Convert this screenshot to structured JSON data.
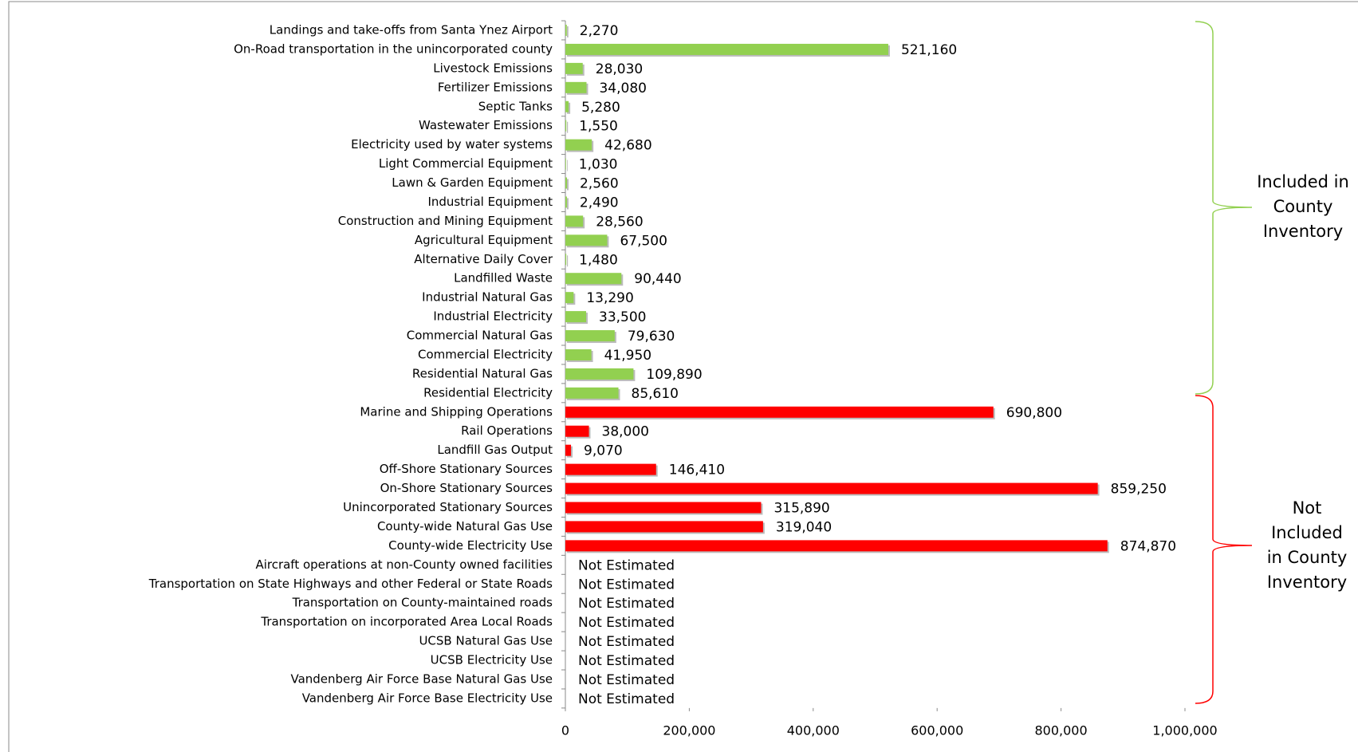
{
  "chart_data": {
    "type": "bar",
    "orientation": "horizontal",
    "categories": [
      "Landings and take-offs from Santa Ynez Airport",
      "On-Road transportation in the unincorporated county",
      "Livestock Emissions",
      "Fertilizer Emissions",
      "Septic Tanks",
      "Wastewater Emissions",
      "Electricity used by water systems",
      "Light Commercial Equipment",
      "Lawn & Garden Equipment",
      "Industrial Equipment",
      "Construction and Mining Equipment",
      "Agricultural Equipment",
      "Alternative Daily Cover",
      "Landfilled Waste",
      "Industrial Natural Gas",
      "Industrial Electricity",
      "Commercial Natural Gas",
      "Commercial Electricity",
      "Residential Natural Gas",
      "Residential Electricity",
      "Marine and Shipping Operations",
      "Rail Operations",
      "Landfill Gas Output",
      "Off-Shore Stationary Sources",
      "On-Shore Stationary Sources",
      "Unincorporated Stationary Sources",
      "County-wide Natural Gas Use",
      "County-wide Electricity Use",
      "Aircraft operations at non-County owned facilities",
      "Transportation on State Highways and other Federal or State Roads",
      "Transportation on County-maintained roads",
      "Transportation on incorporated Area Local Roads",
      "UCSB Natural Gas Use",
      "UCSB Electricity Use",
      "Vandenberg Air Force Base Natural Gas Use",
      "Vandenberg Air Force Base Electricity Use"
    ],
    "values": [
      2270,
      521160,
      28030,
      34080,
      5280,
      1550,
      42680,
      1030,
      2560,
      2490,
      28560,
      67500,
      1480,
      90440,
      13290,
      33500,
      79630,
      41950,
      109890,
      85610,
      690800,
      38000,
      9070,
      146410,
      859250,
      315890,
      319040,
      874870,
      null,
      null,
      null,
      null,
      null,
      null,
      null,
      null
    ],
    "value_labels": [
      "2,270",
      "521,160",
      "28,030",
      "34,080",
      "5,280",
      "1,550",
      "42,680",
      "1,030",
      "2,560",
      "2,490",
      "28,560",
      "67,500",
      "1,480",
      "90,440",
      "13,290",
      "33,500",
      "79,630",
      "41,950",
      "109,890",
      "85,610",
      "690,800",
      "38,000",
      "9,070",
      "146,410",
      "859,250",
      "315,890",
      "319,040",
      "874,870",
      "Not Estimated",
      "Not Estimated",
      "Not Estimated",
      "Not Estimated",
      "Not Estimated",
      "Not Estimated",
      "Not Estimated",
      "Not Estimated"
    ],
    "colors": [
      "#92d050",
      "#92d050",
      "#92d050",
      "#92d050",
      "#92d050",
      "#92d050",
      "#92d050",
      "#92d050",
      "#92d050",
      "#92d050",
      "#92d050",
      "#92d050",
      "#92d050",
      "#92d050",
      "#92d050",
      "#92d050",
      "#92d050",
      "#92d050",
      "#92d050",
      "#92d050",
      "#ff0000",
      "#ff0000",
      "#ff0000",
      "#ff0000",
      "#ff0000",
      "#ff0000",
      "#ff0000",
      "#ff0000",
      "#ff0000",
      "#ff0000",
      "#ff0000",
      "#ff0000",
      "#ff0000",
      "#ff0000",
      "#ff0000",
      "#ff0000"
    ],
    "xlim": [
      0,
      1000000
    ],
    "xticks": [
      0,
      {
        "value": 200000,
        "label": "200,000"
      },
      {
        "value": 400000,
        "label": "400,000"
      },
      {
        "value": 600000,
        "label": "600,000"
      },
      {
        "value": 800000,
        "label": "800,000"
      },
      {
        "value": 1000000,
        "label": "1,000,000"
      }
    ],
    "grid": false,
    "annotations": [
      {
        "text": "Included in County Inventory",
        "color": "#92d050"
      },
      {
        "text": "Not Included in County Inventory",
        "color": "#ff0000"
      }
    ]
  }
}
